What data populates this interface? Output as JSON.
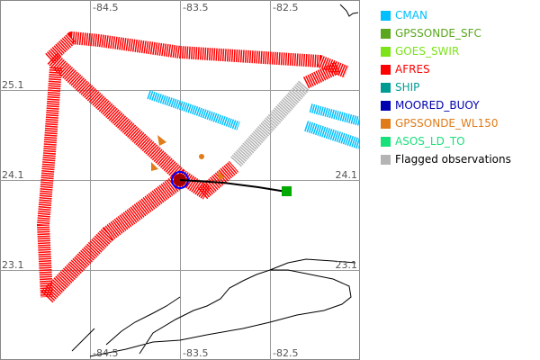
{
  "map": {
    "lon_labels": [
      "-84.5",
      "-83.5",
      "-82.5"
    ],
    "lat_labels": [
      "25.1",
      "24.1",
      "23.1"
    ]
  },
  "legend": [
    {
      "label": "CMAN",
      "color": "#00BFFF"
    },
    {
      "label": "GPSSONDE_SFC",
      "color": "#5AA71E"
    },
    {
      "label": "GOES_SWIR",
      "color": "#7CE31A"
    },
    {
      "label": "AFRES",
      "color": "#FF0000"
    },
    {
      "label": "SHIP",
      "color": "#009C94"
    },
    {
      "label": "MOORED_BUOY",
      "color": "#0000B0"
    },
    {
      "label": "GPSSONDE_WL150",
      "color": "#E07B1A"
    },
    {
      "label": "ASOS_LD_TO",
      "color": "#18E07A"
    },
    {
      "label": "Flagged observations",
      "color": "#B4B4B4",
      "text_color": "#000000"
    }
  ]
}
